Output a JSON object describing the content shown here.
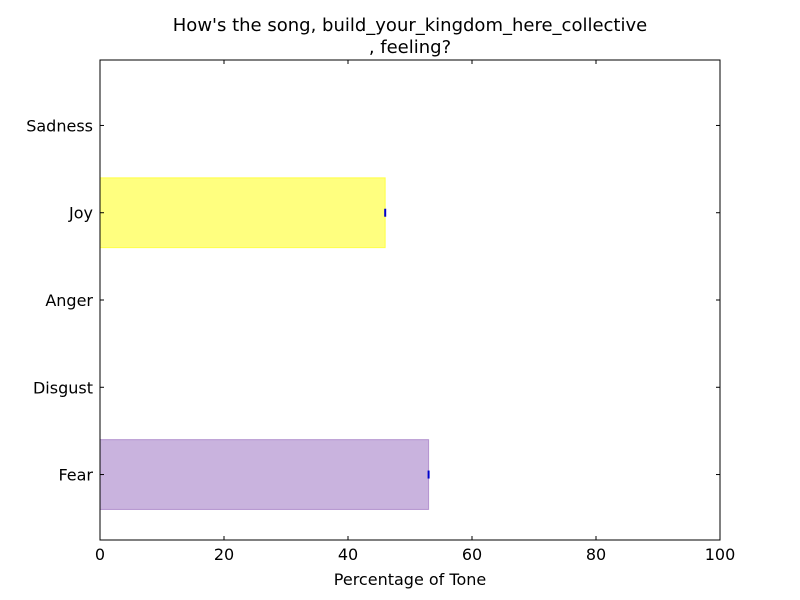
{
  "chart_data": {
    "type": "bar",
    "orientation": "horizontal",
    "title": "How's the song, build_your_kingdom_here_collective\n, feeling?",
    "xlabel": "Percentage of Tone",
    "ylabel": "",
    "xlim": [
      0,
      100
    ],
    "xticks": [
      0,
      20,
      40,
      60,
      80,
      100
    ],
    "categories": [
      "Fear",
      "Disgust",
      "Anger",
      "Joy",
      "Sadness"
    ],
    "values": [
      53,
      0,
      0,
      46,
      0
    ],
    "colors": [
      "#9467bd",
      "#8c564b",
      "#d62728",
      "#ffff00",
      "#1f77b4"
    ],
    "bar_alpha": 0.5,
    "grid": false,
    "legend": "none"
  }
}
